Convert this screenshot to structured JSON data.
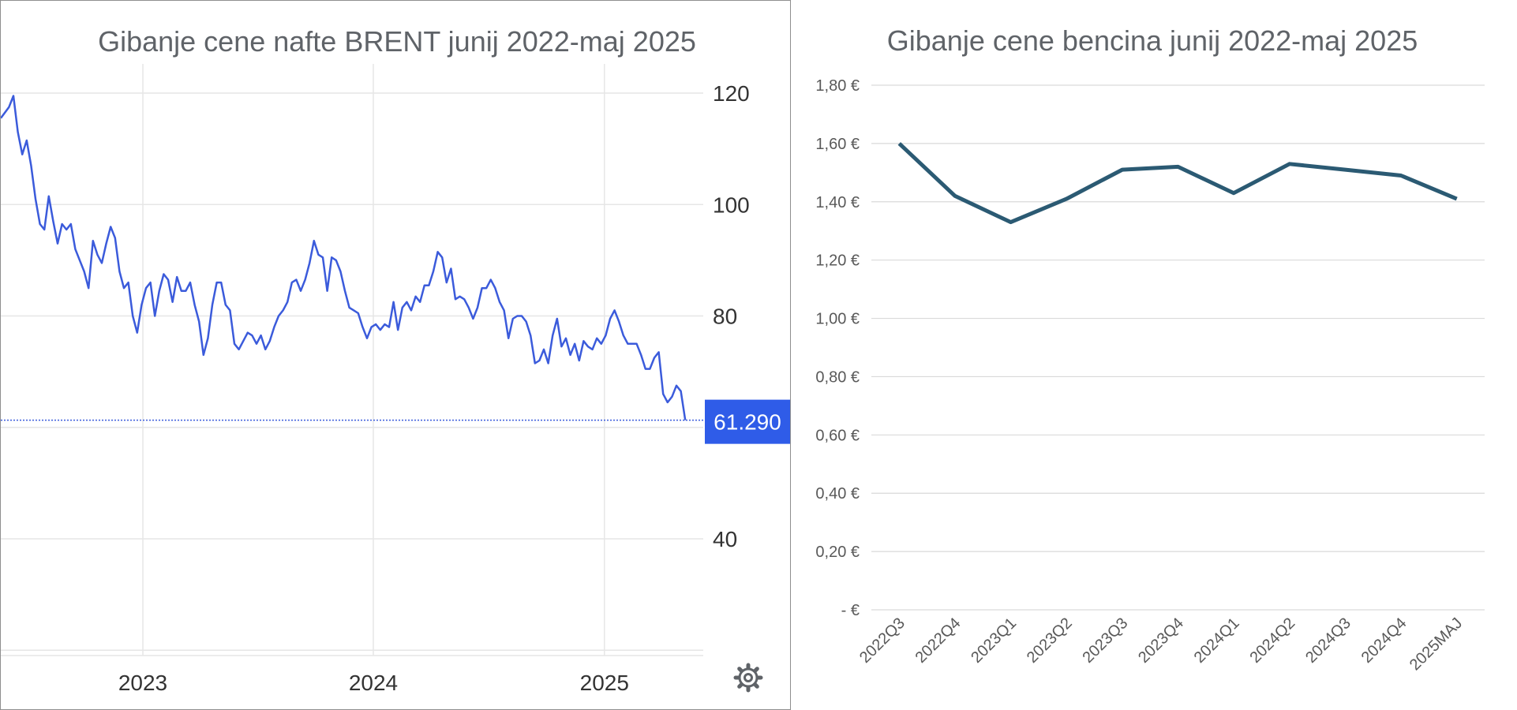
{
  "colors": {
    "brent_line": "#3b5bdb",
    "badge_bg": "#2f5ce8",
    "petrol_line": "#2b5a73",
    "grid": "#e6e6e6",
    "title": "#5f6368"
  },
  "icons": {
    "settings": "gear-icon"
  },
  "chart_data": [
    {
      "type": "line",
      "title": "Gibanje cene nafte BRENT junij 2022-maj 2025",
      "xlabel": "",
      "ylabel": "",
      "y_axis_side": "right",
      "ylim": [
        20,
        125
      ],
      "y_ticks": [
        "120",
        "100",
        "80",
        "40"
      ],
      "x_range": [
        "2022-06",
        "2025-05"
      ],
      "x_ticks": [
        "2023",
        "2024",
        "2025"
      ],
      "x_tick_dates": [
        "2023-01-01",
        "2024-01-01",
        "2025-01-01"
      ],
      "last_value_label": "61.290",
      "last_value": 61.29,
      "grid": true,
      "series": [
        {
          "values": [
            [
              "2022-06-03",
              117.5
            ],
            [
              "2022-06-10",
              119.5
            ],
            [
              "2022-06-17",
              113.0
            ],
            [
              "2022-06-24",
              109.0
            ],
            [
              "2022-07-01",
              111.5
            ],
            [
              "2022-07-08",
              107.0
            ],
            [
              "2022-07-15",
              101.0
            ],
            [
              "2022-07-22",
              96.5
            ],
            [
              "2022-07-29",
              95.5
            ],
            [
              "2022-08-05",
              101.5
            ],
            [
              "2022-08-12",
              97.0
            ],
            [
              "2022-08-19",
              93.0
            ],
            [
              "2022-08-26",
              96.5
            ],
            [
              "2022-09-02",
              95.5
            ],
            [
              "2022-09-09",
              96.5
            ],
            [
              "2022-09-16",
              92.0
            ],
            [
              "2022-09-23",
              90.0
            ],
            [
              "2022-09-30",
              88.0
            ],
            [
              "2022-10-07",
              85.0
            ],
            [
              "2022-10-14",
              93.5
            ],
            [
              "2022-10-21",
              91.0
            ],
            [
              "2022-10-28",
              89.5
            ],
            [
              "2022-11-04",
              93.0
            ],
            [
              "2022-11-11",
              96.0
            ],
            [
              "2022-11-18",
              94.0
            ],
            [
              "2022-11-25",
              88.0
            ],
            [
              "2022-12-02",
              85.0
            ],
            [
              "2022-12-09",
              86.0
            ],
            [
              "2022-12-16",
              80.0
            ],
            [
              "2022-12-23",
              77.0
            ],
            [
              "2022-12-30",
              82.0
            ],
            [
              "2023-01-06",
              85.0
            ],
            [
              "2023-01-13",
              86.0
            ],
            [
              "2023-01-20",
              80.0
            ],
            [
              "2023-01-27",
              84.5
            ],
            [
              "2023-02-03",
              87.5
            ],
            [
              "2023-02-10",
              86.5
            ],
            [
              "2023-02-17",
              82.5
            ],
            [
              "2023-02-24",
              87.0
            ],
            [
              "2023-03-03",
              84.5
            ],
            [
              "2023-03-10",
              84.5
            ],
            [
              "2023-03-17",
              86.0
            ],
            [
              "2023-03-24",
              82.0
            ],
            [
              "2023-03-31",
              79.0
            ],
            [
              "2023-04-07",
              73.0
            ],
            [
              "2023-04-14",
              76.0
            ],
            [
              "2023-04-21",
              82.0
            ],
            [
              "2023-04-28",
              86.0
            ],
            [
              "2023-05-05",
              86.0
            ],
            [
              "2023-05-12",
              82.0
            ],
            [
              "2023-05-19",
              81.0
            ],
            [
              "2023-05-26",
              75.0
            ],
            [
              "2023-06-02",
              74.0
            ],
            [
              "2023-06-09",
              75.5
            ],
            [
              "2023-06-16",
              77.0
            ],
            [
              "2023-06-23",
              76.5
            ],
            [
              "2023-06-30",
              75.0
            ],
            [
              "2023-07-07",
              76.5
            ],
            [
              "2023-07-14",
              74.0
            ],
            [
              "2023-07-21",
              75.5
            ],
            [
              "2023-07-28",
              78.0
            ],
            [
              "2023-08-04",
              80.0
            ],
            [
              "2023-08-11",
              81.0
            ],
            [
              "2023-08-18",
              82.5
            ],
            [
              "2023-08-25",
              86.0
            ],
            [
              "2023-09-01",
              86.5
            ],
            [
              "2023-09-08",
              84.5
            ],
            [
              "2023-09-15",
              86.5
            ],
            [
              "2023-09-22",
              89.5
            ],
            [
              "2023-09-29",
              93.5
            ],
            [
              "2023-10-06",
              91.0
            ],
            [
              "2023-10-13",
              90.5
            ],
            [
              "2023-10-20",
              84.5
            ],
            [
              "2023-10-27",
              90.5
            ],
            [
              "2023-11-03",
              90.0
            ],
            [
              "2023-11-10",
              88.0
            ],
            [
              "2023-11-17",
              84.5
            ],
            [
              "2023-11-24",
              81.5
            ],
            [
              "2023-12-01",
              81.0
            ],
            [
              "2023-12-08",
              80.5
            ],
            [
              "2023-12-15",
              78.0
            ],
            [
              "2023-12-22",
              76.0
            ],
            [
              "2023-12-29",
              78.0
            ],
            [
              "2024-01-05",
              78.5
            ],
            [
              "2024-01-12",
              77.5
            ],
            [
              "2024-01-19",
              78.5
            ],
            [
              "2024-01-26",
              78.0
            ],
            [
              "2024-02-02",
              82.5
            ],
            [
              "2024-02-09",
              77.5
            ],
            [
              "2024-02-16",
              81.5
            ],
            [
              "2024-02-23",
              82.5
            ],
            [
              "2024-03-01",
              81.0
            ],
            [
              "2024-03-08",
              83.5
            ],
            [
              "2024-03-15",
              82.5
            ],
            [
              "2024-03-22",
              85.5
            ],
            [
              "2024-03-29",
              85.5
            ],
            [
              "2024-04-05",
              88.0
            ],
            [
              "2024-04-12",
              91.5
            ],
            [
              "2024-04-19",
              90.5
            ],
            [
              "2024-04-26",
              86.0
            ],
            [
              "2024-05-03",
              88.5
            ],
            [
              "2024-05-10",
              83.0
            ],
            [
              "2024-05-17",
              83.5
            ],
            [
              "2024-05-24",
              83.0
            ],
            [
              "2024-05-31",
              81.5
            ],
            [
              "2024-06-07",
              79.5
            ],
            [
              "2024-06-14",
              81.5
            ],
            [
              "2024-06-21",
              85.0
            ],
            [
              "2024-06-28",
              85.0
            ],
            [
              "2024-07-05",
              86.5
            ],
            [
              "2024-07-12",
              85.0
            ],
            [
              "2024-07-19",
              82.5
            ],
            [
              "2024-07-26",
              81.0
            ],
            [
              "2024-08-02",
              76.0
            ],
            [
              "2024-08-09",
              79.5
            ],
            [
              "2024-08-16",
              80.0
            ],
            [
              "2024-08-23",
              80.0
            ],
            [
              "2024-08-30",
              79.0
            ],
            [
              "2024-09-06",
              76.5
            ],
            [
              "2024-09-13",
              71.5
            ],
            [
              "2024-09-20",
              72.0
            ],
            [
              "2024-09-27",
              74.0
            ],
            [
              "2024-10-04",
              71.5
            ],
            [
              "2024-10-11",
              76.5
            ],
            [
              "2024-10-18",
              79.5
            ],
            [
              "2024-10-25",
              74.5
            ],
            [
              "2024-11-01",
              76.0
            ],
            [
              "2024-11-08",
              73.0
            ],
            [
              "2024-11-15",
              75.0
            ],
            [
              "2024-11-22",
              72.0
            ],
            [
              "2024-11-29",
              75.5
            ],
            [
              "2024-12-06",
              74.5
            ],
            [
              "2024-12-13",
              74.0
            ],
            [
              "2024-12-20",
              76.0
            ],
            [
              "2024-12-27",
              75.0
            ],
            [
              "2025-01-03",
              76.5
            ],
            [
              "2025-01-10",
              79.5
            ],
            [
              "2025-01-17",
              81.0
            ],
            [
              "2025-01-24",
              79.0
            ],
            [
              "2025-01-31",
              76.5
            ],
            [
              "2025-02-07",
              75.0
            ],
            [
              "2025-02-14",
              75.0
            ],
            [
              "2025-02-21",
              75.0
            ],
            [
              "2025-02-28",
              73.0
            ],
            [
              "2025-03-07",
              70.5
            ],
            [
              "2025-03-14",
              70.5
            ],
            [
              "2025-03-21",
              72.5
            ],
            [
              "2025-03-28",
              73.5
            ],
            [
              "2025-04-04",
              66.0
            ],
            [
              "2025-04-11",
              64.5
            ],
            [
              "2025-04-18",
              65.5
            ],
            [
              "2025-04-25",
              67.5
            ],
            [
              "2025-05-02",
              66.5
            ],
            [
              "2025-05-09",
              61.29
            ]
          ]
        }
      ]
    },
    {
      "type": "line",
      "title": "Gibanje cene bencina junij 2022-maj 2025",
      "xlabel": "",
      "ylabel": "",
      "ylim": [
        0,
        1.8
      ],
      "y_ticks": [
        "1,80 €",
        "1,60 €",
        "1,40 €",
        "1,20 €",
        "1,00 €",
        "0,80 €",
        "0,60 €",
        "0,40 €",
        "0,20 €",
        "-   €"
      ],
      "categories": [
        "2022Q3",
        "2022Q4",
        "2023Q1",
        "2023Q2",
        "2023Q3",
        "2023Q4",
        "2024Q1",
        "2024Q2",
        "2024Q3",
        "2024Q4",
        "2025MAJ"
      ],
      "grid": true,
      "series": [
        {
          "values": [
            1.6,
            1.42,
            1.33,
            1.41,
            1.51,
            1.52,
            1.43,
            1.53,
            1.51,
            1.49,
            1.41
          ]
        }
      ]
    }
  ]
}
